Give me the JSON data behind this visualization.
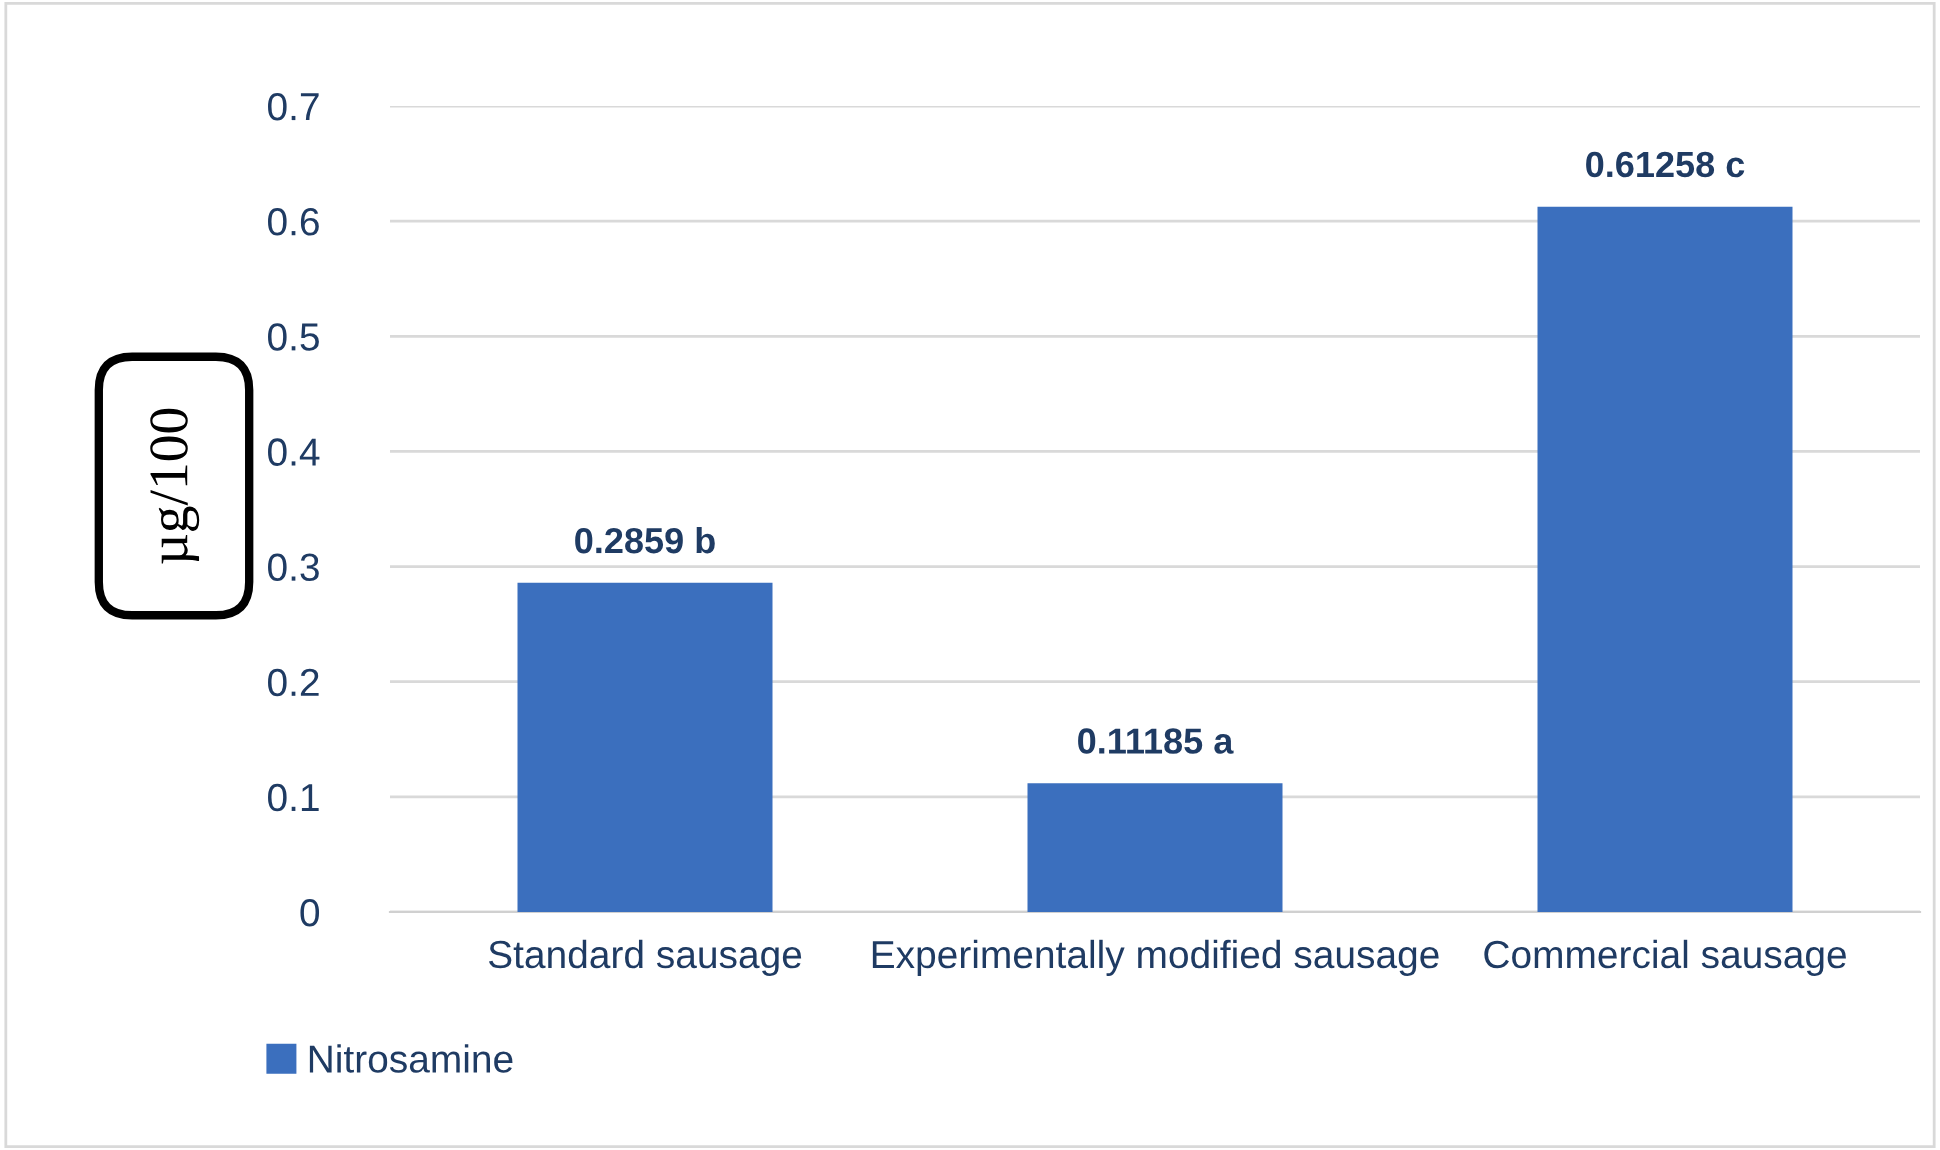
{
  "chart_data": {
    "type": "bar",
    "ylabel": "µg/100",
    "categories": [
      "Standard sausage",
      "Experimentally modified sausage",
      "Commercial sausage"
    ],
    "series": [
      {
        "name": "Nitrosamine",
        "color": "#3b6fbe",
        "values": [
          0.2859,
          0.11185,
          0.61258
        ],
        "value_labels": [
          "0.2859 b",
          "0.11185 a",
          "0.61258 c"
        ]
      }
    ],
    "ylim": [
      0,
      0.7
    ],
    "yticks": [
      {
        "value": 0,
        "label": "0"
      },
      0.1,
      0.2,
      0.3,
      0.4,
      0.5,
      0.6,
      0.7
    ],
    "grid": "y",
    "legend": "bottom left"
  }
}
